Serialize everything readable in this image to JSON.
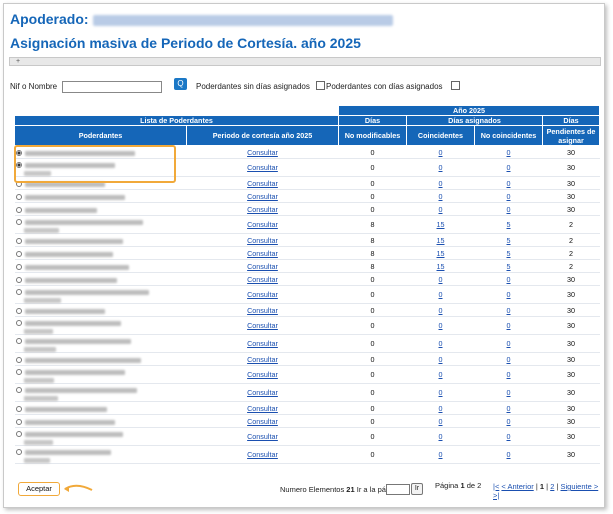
{
  "header": {
    "apoderado_label": "Apoderado:",
    "title": "Asignación masiva de Periodo de Cortesía. año 2025"
  },
  "collapse_bar": {
    "icon": "plus-icon",
    "label": "+"
  },
  "filters": {
    "nif_label": "Nif o Nombre",
    "nif_value": "",
    "search_icon": "search-icon",
    "search_glyph": "Q",
    "sin_dias_label": "Poderdantes sin días asignados",
    "con_dias_label": "Poderdantes con días asignados"
  },
  "table": {
    "year_header": "Año 2025",
    "lista_header": "Lista de Poderdantes",
    "dias_header": "Días",
    "dias_asignados_header": "Días asignados",
    "dias_header_2": "Días",
    "columns": {
      "poderdantes": "Poderdantes",
      "periodo": "Periodo de cortesía año 2025",
      "no_modificables": "No modificables",
      "coincidentes": "Coincidentes",
      "no_coincidentes": "No coincidentes",
      "pendientes": "Pendientes de asignar"
    },
    "link_label": "Consultar",
    "rows": [
      {
        "selected": true,
        "nm": "0",
        "co": "0",
        "nc": "0",
        "pe": "30"
      },
      {
        "selected": true,
        "nm": "0",
        "co": "0",
        "nc": "0",
        "pe": "30"
      },
      {
        "selected": false,
        "nm": "0",
        "co": "0",
        "nc": "0",
        "pe": "30"
      },
      {
        "selected": false,
        "nm": "0",
        "co": "0",
        "nc": "0",
        "pe": "30"
      },
      {
        "selected": false,
        "nm": "0",
        "co": "0",
        "nc": "0",
        "pe": "30"
      },
      {
        "selected": false,
        "nm": "8",
        "co": "15",
        "nc": "5",
        "pe": "2"
      },
      {
        "selected": false,
        "nm": "8",
        "co": "15",
        "nc": "5",
        "pe": "2"
      },
      {
        "selected": false,
        "nm": "8",
        "co": "15",
        "nc": "5",
        "pe": "2"
      },
      {
        "selected": false,
        "nm": "8",
        "co": "15",
        "nc": "5",
        "pe": "2"
      },
      {
        "selected": false,
        "nm": "0",
        "co": "0",
        "nc": "0",
        "pe": "30"
      },
      {
        "selected": false,
        "nm": "0",
        "co": "0",
        "nc": "0",
        "pe": "30"
      },
      {
        "selected": false,
        "nm": "0",
        "co": "0",
        "nc": "0",
        "pe": "30"
      },
      {
        "selected": false,
        "nm": "0",
        "co": "0",
        "nc": "0",
        "pe": "30"
      },
      {
        "selected": false,
        "nm": "0",
        "co": "0",
        "nc": "0",
        "pe": "30"
      },
      {
        "selected": false,
        "nm": "0",
        "co": "0",
        "nc": "0",
        "pe": "30"
      },
      {
        "selected": false,
        "nm": "0",
        "co": "0",
        "nc": "0",
        "pe": "30"
      },
      {
        "selected": false,
        "nm": "0",
        "co": "0",
        "nc": "0",
        "pe": "30"
      },
      {
        "selected": false,
        "nm": "0",
        "co": "0",
        "nc": "0",
        "pe": "30"
      },
      {
        "selected": false,
        "nm": "0",
        "co": "0",
        "nc": "0",
        "pe": "30"
      },
      {
        "selected": false,
        "nm": "0",
        "co": "0",
        "nc": "0",
        "pe": "30"
      },
      {
        "selected": false,
        "nm": "0",
        "co": "0",
        "nc": "0",
        "pe": "30"
      }
    ]
  },
  "footer": {
    "aceptar_label": "Aceptar",
    "num_elementos_label": "Numero Elementos",
    "num_elementos_value": "21",
    "ir_label": "Ir a la pág.",
    "ir_button": "Ir",
    "pagina_label": "Página",
    "pagina_current": "1",
    "pagina_de": "de",
    "pagina_total": "2",
    "nav_prefix": "|<",
    "nav_anterior": "< Anterior",
    "nav_p1": "1",
    "nav_p2": "2",
    "nav_siguiente": "Siguiente >",
    "nav_suffix": ">|"
  },
  "colors": {
    "brand_blue": "#1566b8",
    "highlight": "#f1a93a",
    "link": "#1a4fb0"
  }
}
